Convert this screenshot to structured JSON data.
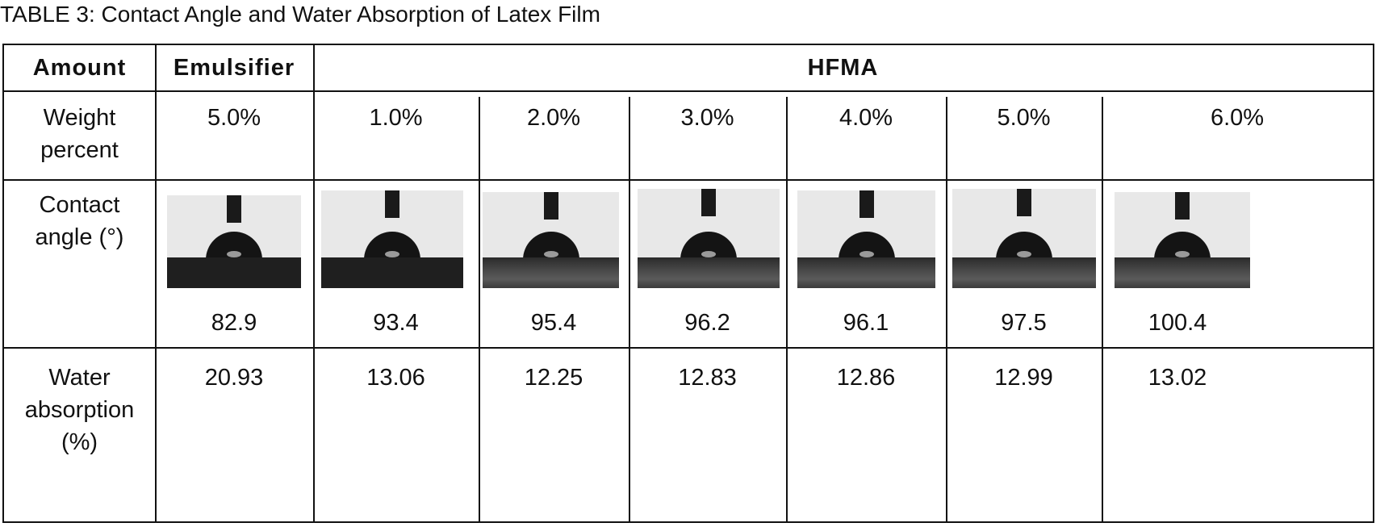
{
  "title": "TABLE 3: Contact Angle and Water Absorption of Latex Film",
  "header": {
    "amount": "Amount",
    "emulsifier": "Emulsifier",
    "hfma": "HFMA"
  },
  "rows": {
    "weight": {
      "label_line1": "Weight",
      "label_line2": "percent",
      "values": [
        "5.0%",
        "1.0%",
        "2.0%",
        "3.0%",
        "4.0%",
        "5.0%",
        "6.0%"
      ]
    },
    "contact": {
      "label_line1": "Contact",
      "label_line2": "angle (°)",
      "values": [
        "82.9",
        "93.4",
        "95.4",
        "96.2",
        "96.1",
        "97.5",
        "100.4"
      ]
    },
    "water": {
      "label_line1": "Water",
      "label_line2": "absorption",
      "label_line3": "(%)",
      "values": [
        "20.93",
        "13.06",
        "12.25",
        "12.83",
        "12.86",
        "12.99",
        "13.02"
      ]
    }
  }
}
